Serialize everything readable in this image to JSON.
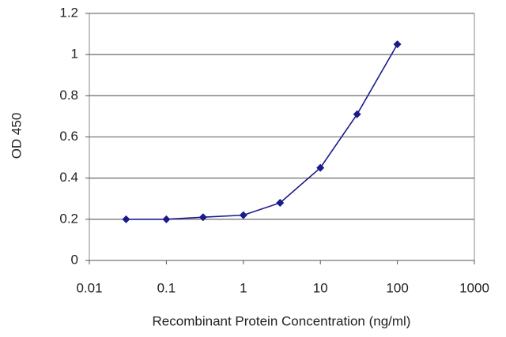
{
  "chart_data": {
    "type": "line",
    "x_label": "Recombinant Protein Concentration (ng/ml)",
    "y_label": "OD 450",
    "x": [
      0.03,
      0.1,
      0.3,
      1,
      3,
      10,
      30,
      100
    ],
    "series": [
      {
        "color": "#1a1a8c",
        "values": [
          0.2,
          0.2,
          0.21,
          0.22,
          0.28,
          0.45,
          0.71,
          1.05
        ]
      }
    ],
    "xscale": "log",
    "xlim": [
      0.01,
      1000
    ],
    "xticks": [
      0.01,
      0.1,
      1,
      10,
      100,
      1000
    ],
    "ylim": [
      0,
      1.2
    ],
    "yticks": [
      0,
      0.2,
      0.4,
      0.6,
      0.8,
      1,
      1.2
    ],
    "grid": true
  }
}
